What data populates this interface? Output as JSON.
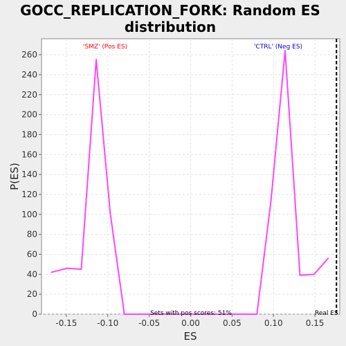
{
  "chart_data": {
    "type": "line",
    "title_lines": [
      "GOCC_REPLICATION_FORK: Random ES",
      "distribution"
    ],
    "xlabel": "ES",
    "ylabel": "P(ES)",
    "xlim": [
      -0.18,
      0.18
    ],
    "ylim": [
      0,
      276
    ],
    "x_ticks": [
      -0.15,
      -0.1,
      -0.05,
      0.0,
      0.05,
      0.1,
      0.15
    ],
    "x_tick_labels": [
      "-0.15",
      "-0.10",
      "-0.05",
      "0.00",
      "0.05",
      "0.10",
      "0.15"
    ],
    "y_ticks": [
      0,
      20,
      40,
      60,
      80,
      100,
      120,
      140,
      160,
      180,
      200,
      220,
      240,
      260
    ],
    "grid": true,
    "series": [
      {
        "color": "#ff44ff",
        "x": [
          -0.168,
          -0.149,
          -0.132,
          -0.114,
          -0.097,
          -0.08,
          0.08,
          0.097,
          0.114,
          0.132,
          0.149,
          0.166
        ],
        "y": [
          42,
          46,
          45,
          255,
          101,
          0,
          0,
          114,
          264,
          39,
          40,
          56
        ]
      }
    ],
    "real_es": 0.176,
    "annotations": {
      "pos_label": "'SMZ' (Pos ES)",
      "neg_label": "'CTRL' (Neg ES)",
      "pos_scores": "Sets with pos scores: 51%",
      "real_es_label": "Real ES"
    },
    "colors": {
      "pos_label": "#ff0000",
      "neg_label": "#0000cc",
      "real_es_line": "#000000"
    }
  }
}
